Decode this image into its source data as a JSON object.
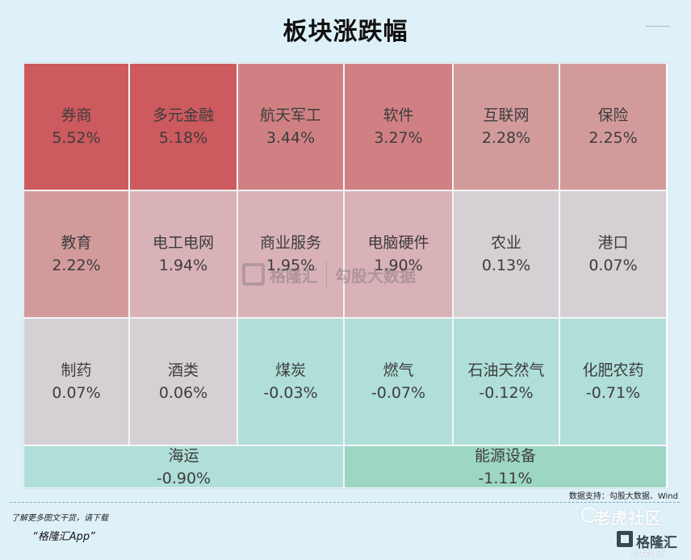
{
  "title": "板块涨跌幅",
  "chart_data": {
    "type": "heatmap",
    "title": "板块涨跌幅",
    "unit": "%",
    "cells": [
      {
        "name": "券商",
        "value": 5.52,
        "label": "5.52%"
      },
      {
        "name": "多元金融",
        "value": 5.18,
        "label": "5.18%"
      },
      {
        "name": "航天军工",
        "value": 3.44,
        "label": "3.44%"
      },
      {
        "name": "软件",
        "value": 3.27,
        "label": "3.27%"
      },
      {
        "name": "互联网",
        "value": 2.28,
        "label": "2.28%"
      },
      {
        "name": "保险",
        "value": 2.25,
        "label": "2.25%"
      },
      {
        "name": "教育",
        "value": 2.22,
        "label": "2.22%"
      },
      {
        "name": "电工电网",
        "value": 1.94,
        "label": "1.94%"
      },
      {
        "name": "商业服务",
        "value": 1.95,
        "label": "1.95%"
      },
      {
        "name": "电脑硬件",
        "value": 1.9,
        "label": "1.90%"
      },
      {
        "name": "农业",
        "value": 0.13,
        "label": "0.13%"
      },
      {
        "name": "港口",
        "value": 0.07,
        "label": "0.07%"
      },
      {
        "name": "制药",
        "value": 0.07,
        "label": "0.07%"
      },
      {
        "name": "酒类",
        "value": 0.06,
        "label": "0.06%"
      },
      {
        "name": "煤炭",
        "value": -0.03,
        "label": "-0.03%"
      },
      {
        "name": "燃气",
        "value": -0.07,
        "label": "-0.07%"
      },
      {
        "name": "石油天然气",
        "value": -0.12,
        "label": "-0.12%"
      },
      {
        "name": "化肥农药",
        "value": -0.71,
        "label": "-0.71%"
      },
      {
        "name": "海运",
        "value": -0.9,
        "label": "-0.90%"
      },
      {
        "name": "能源设备",
        "value": -1.11,
        "label": "-1.11%"
      }
    ]
  },
  "colors": {
    "strong_up": "#cc5a5e",
    "up_2": "#d08083",
    "up_3": "#d39a9c",
    "up_4": "#d9b2b8",
    "flat": "#d6d0d5",
    "down_1": "#b0ded8",
    "down_2": "#9ed6c4"
  },
  "watermark": {
    "brand": "格隆汇",
    "data": "勾股大数据"
  },
  "source": "数据支持：勾股大数据、Wind",
  "footer": {
    "line1": "了解更多图文干货，请下载",
    "line2": "“格隆汇App”"
  },
  "brand": {
    "overlay": "老虎社区",
    "name": "格隆汇",
    "handle": "@格隆汇"
  }
}
